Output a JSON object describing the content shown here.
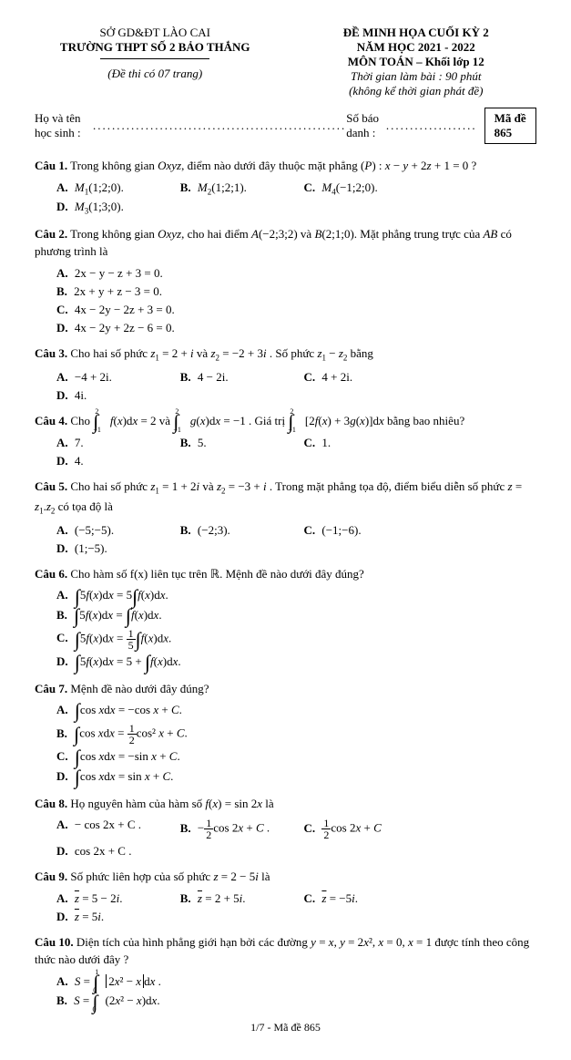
{
  "header": {
    "dept": "SỞ GD&ĐT LÀO CAI",
    "school": "TRƯỜNG THPT SỐ 2 BẢO THẮNG",
    "dethi": "(Đề thi có 07 trang)",
    "title1": "ĐỀ MINH HỌA CUỐI KỲ 2",
    "title2": "NĂM HỌC 2021 - 2022",
    "title3": "MÔN TOÁN – Khối lớp 12",
    "time": "Thời gian làm bài : 90 phút",
    "note": "(không kể thời gian phát đề)"
  },
  "name_row": {
    "name_label": "Họ và tên học sinh :",
    "sbd_label": " Số báo danh : ",
    "made_label": "Mã đề 865"
  },
  "q1": {
    "text": "Trong không gian Oxyz, điểm nào dưới đây thuộc mặt phẳng (P) : x − y + 2z + 1 = 0 ?",
    "A": "M₁(1;2;0).",
    "B": "M₂(1;2;1).",
    "C": "M₄(−1;2;0).",
    "D": "M₃(1;3;0)."
  },
  "q2": {
    "text": "Trong không gian Oxyz, cho hai điểm A(−2;3;2) và B(2;1;0). Mặt phẳng trung trực của AB có phương trình là",
    "A": "2x − y − z + 3 = 0.",
    "B": "2x + y + z − 3 = 0.",
    "C": "4x − 2y − 2z + 3 = 0.",
    "D": "4x − 2y + 2z − 6 = 0."
  },
  "q3": {
    "text": "Cho hai số phức z₁ = 2 + i và z₂ = −2 + 3i . Số phức z₁ − z₂ bằng",
    "A": "−4 + 2i.",
    "B": "4 − 2i.",
    "C": "4 + 2i.",
    "D": "4i."
  },
  "q4": {
    "pre": "Cho ",
    "mid": " và ",
    "post": ". Giá trị ",
    "end": " bằng bao nhiêu?",
    "A": "7.",
    "B": "5.",
    "C": "1.",
    "D": "4."
  },
  "q5": {
    "text": "Cho hai số phức z₁ = 1 + 2i và z₂ = −3 + i . Trong mặt phẳng tọa độ, điểm biểu diễn số phức z = z₁.z₂ có tọa độ là",
    "A": "(−5;−5).",
    "B": "(−2;3).",
    "C": "(−1;−6).",
    "D": "(1;−5)."
  },
  "q6": {
    "text": "Cho hàm số f(x) liên tục trên ℝ. Mệnh đề nào dưới đây đúng?"
  },
  "q7": {
    "text": "Mệnh đề nào dưới đây đúng?"
  },
  "q8": {
    "text": "Họ nguyên hàm của hàm số f(x) = sin 2x là",
    "A": "− cos 2x + C .",
    "D": "cos 2x + C ."
  },
  "q9": {
    "text": "Số phức liên hợp của số phức z = 2 − 5i là"
  },
  "q10": {
    "text": "Diện tích của hình phẳng giới hạn bởi các đường y = x, y = 2x², x = 0, x = 1 được tính theo công thức nào dưới đây ?"
  },
  "footer": "1/7 - Mã đề 865"
}
